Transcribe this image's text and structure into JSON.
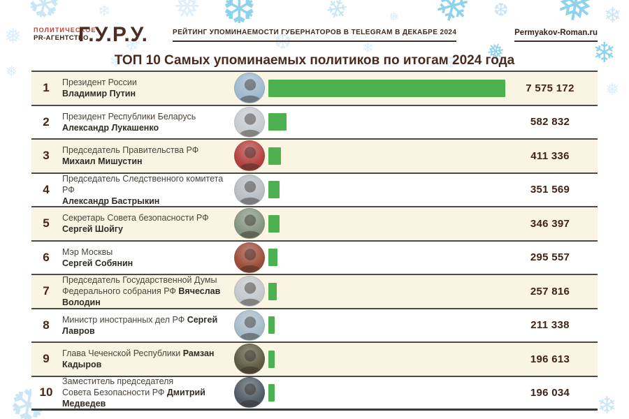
{
  "header": {
    "agency_line1": "ПОЛИТИЧЕСКОЕ",
    "agency_line2": "PR-АГЕНТСТВО",
    "logo": "Г.У.Р.У.",
    "tagline": "РЕЙТИНГ УПОМИНАЕМОСТИ ГУБЕРНАТОРОВ В TELEGRAM В ДЕКАБРЕ 2024",
    "site": "Permyakov-Roman.ru"
  },
  "title": "ТОП 10 Самых упоминаемых политиков по итогам 2024 года",
  "colors": {
    "accent_red": "#c2402f",
    "dark_brown": "#42271e",
    "bar_green": "#4db152",
    "row_cream": "#faf5e2",
    "separator": "#4c4a44",
    "snow_pale": "#c9e6f4",
    "snow_medium": "#8ed2ec",
    "snow_faint": "#ddeffa"
  },
  "decor": {
    "snowflake_glyphs": [
      "❄",
      "❅",
      "❆"
    ]
  },
  "rows": [
    {
      "rank": "1",
      "line1": "Президент России",
      "line2_prefix": "",
      "name": "Владимир Путин",
      "value_label": "7 575 172",
      "value": 7575172,
      "avatar_color": "#9db8cd"
    },
    {
      "rank": "2",
      "line1": "Президент Республики Беларусь",
      "line2_prefix": "",
      "name": "Александр Лукашенко",
      "value_label": "582 832",
      "value": 582832,
      "avatar_color": "#c6cbd0"
    },
    {
      "rank": "3",
      "line1": "Председатель Правительства РФ",
      "line2_prefix": "",
      "name": "Михаил Мишустин",
      "value_label": "411 336",
      "value": 411336,
      "avatar_color": "#b2403c"
    },
    {
      "rank": "4",
      "line1": "Председатель Следственного комитета РФ",
      "line2_prefix": "",
      "name": "Александр Бастрыкин",
      "value_label": "351 569",
      "value": 351569,
      "avatar_color": "#b7bdc3"
    },
    {
      "rank": "5",
      "line1": "Секретарь Совета безопасности РФ",
      "line2_prefix": "",
      "name": "Сергей Шойгу",
      "value_label": "346 397",
      "value": 346397,
      "avatar_color": "#84937f"
    },
    {
      "rank": "6",
      "line1": "Мэр Москвы",
      "line2_prefix": "",
      "name": "Сергей Собянин",
      "value_label": "295 557",
      "value": 295557,
      "avatar_color": "#9c4c38"
    },
    {
      "rank": "7",
      "line1": "Председатель Государственной Думы",
      "line2_prefix": "Федерального собрания РФ ",
      "name": "Вячеслав Володин",
      "value_label": "257 816",
      "value": 257816,
      "avatar_color": "#c3c7cb"
    },
    {
      "rank": "8",
      "line1": "",
      "line2_prefix": "Министр иностранных дел РФ ",
      "name": "Сергей Лавров",
      "value_label": "211 338",
      "value": 211338,
      "avatar_color": "#a4bac8"
    },
    {
      "rank": "9",
      "line1": "",
      "line2_prefix": "Глава Чеченской Республики ",
      "name": "Рамзан Кадыров",
      "value_label": "196 613",
      "value": 196613,
      "avatar_color": "#5d5840"
    },
    {
      "rank": "10",
      "line1": "Заместитель председателя",
      "line2_prefix": "Совета Безопасности РФ ",
      "name": "Дмитрий Медведев",
      "value_label": "196 034",
      "value": 196034,
      "avatar_color": "#505a64"
    }
  ],
  "chart_data": {
    "type": "bar",
    "orientation": "horizontal",
    "title": "ТОП 10 Самых упоминаемых политиков по итогам 2024 года",
    "categories": [
      "Владимир Путин",
      "Александр Лукашенко",
      "Михаил Мишустин",
      "Александр Бастрыкин",
      "Сергей Шойгу",
      "Сергей Собянин",
      "Вячеслав Володин",
      "Сергей Лавров",
      "Рамзан Кадыров",
      "Дмитрий Медведев"
    ],
    "roles": [
      "Президент России",
      "Президент Республики Беларусь",
      "Председатель Правительства РФ",
      "Председатель Следственного комитета РФ",
      "Секретарь Совета безопасности РФ",
      "Мэр Москвы",
      "Председатель Государственной Думы Федерального собрания РФ",
      "Министр иностранных дел РФ",
      "Глава Чеченской Республики",
      "Заместитель председателя Совета Безопасности РФ"
    ],
    "values": [
      7575172,
      582832,
      411336,
      351569,
      346397,
      295557,
      257816,
      211338,
      196613,
      196034
    ],
    "value_labels": [
      "7 575 172",
      "582 832",
      "411 336",
      "351 569",
      "346 397",
      "295 557",
      "257 816",
      "211 338",
      "196 613",
      "196 034"
    ],
    "xlim": [
      0,
      7575172
    ],
    "bar_color": "#4db152",
    "legend": false,
    "grid": false
  }
}
